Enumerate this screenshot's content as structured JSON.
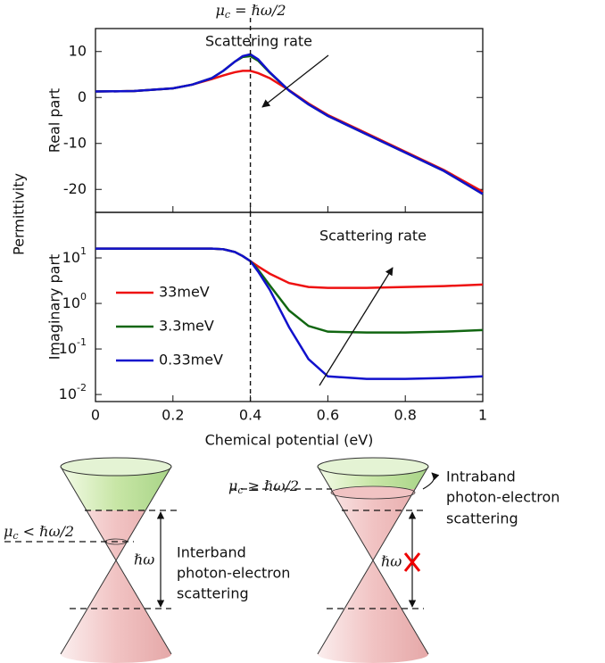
{
  "figure": {
    "y_label": "Permittivity",
    "mu_label": {
      "main": "μ",
      "sub": "c",
      "rest": " = ℏω/2"
    }
  },
  "chart_data": [
    {
      "type": "line",
      "y_label": "Real part",
      "annotation": "Scattering rate",
      "x": [
        0,
        0.1,
        0.2,
        0.25,
        0.3,
        0.33,
        0.36,
        0.38,
        0.4,
        0.42,
        0.45,
        0.5,
        0.55,
        0.6,
        0.7,
        0.8,
        0.9,
        1.0
      ],
      "xlim": [
        0,
        1
      ],
      "ylim": [
        -25,
        15
      ],
      "yticks": [
        -20,
        -10,
        0,
        10
      ],
      "vline": 0.4,
      "legend": "none",
      "series": [
        {
          "name": "33meV",
          "color": "#ee1111",
          "values": [
            1.3,
            1.4,
            2,
            2.8,
            4.0,
            4.8,
            5.5,
            5.8,
            5.8,
            5.3,
            4.2,
            1.6,
            -1.3,
            -3.8,
            -7.8,
            -11.8,
            -15.8,
            -20.5
          ]
        },
        {
          "name": "3.3meV",
          "color": "#116611",
          "values": [
            1.3,
            1.4,
            2,
            2.8,
            4.2,
            5.8,
            7.8,
            8.8,
            9.0,
            8.0,
            5.4,
            1.5,
            -1.5,
            -4,
            -8,
            -12,
            -16,
            -21
          ]
        },
        {
          "name": "0.33meV",
          "color": "#1111cc",
          "values": [
            1.3,
            1.4,
            2,
            2.8,
            4.2,
            5.8,
            7.8,
            9.0,
            9.4,
            8.3,
            5.5,
            1.5,
            -1.5,
            -4,
            -8,
            -12,
            -16,
            -21
          ]
        }
      ]
    },
    {
      "type": "line",
      "y_label": "Imaginary part",
      "annotation": "Scattering rate",
      "x_label": "Chemical potential (eV)",
      "x": [
        0,
        0.1,
        0.2,
        0.25,
        0.3,
        0.33,
        0.36,
        0.38,
        0.4,
        0.42,
        0.45,
        0.5,
        0.55,
        0.6,
        0.7,
        0.8,
        0.9,
        1.0
      ],
      "xlim": [
        0,
        1
      ],
      "xticks": [
        0,
        0.2,
        0.4,
        0.6,
        0.8,
        1
      ],
      "log_y": true,
      "ylim": [
        0.007,
        100
      ],
      "yticks": [
        {
          "value": 0.01,
          "label": "10",
          "power": "-2"
        },
        {
          "value": 0.1,
          "label": "10",
          "power": "-1"
        },
        {
          "value": 1,
          "label": "10",
          "power": "0"
        },
        {
          "value": 10,
          "label": "10",
          "power": "1"
        }
      ],
      "vline": 0.4,
      "legend": "left",
      "series": [
        {
          "name": "33meV",
          "color": "#ee1111",
          "values": [
            16,
            16,
            16,
            16,
            16,
            15.5,
            13.5,
            11,
            8.5,
            6.5,
            4.5,
            2.8,
            2.3,
            2.2,
            2.2,
            2.3,
            2.4,
            2.6
          ]
        },
        {
          "name": "3.3meV",
          "color": "#116611",
          "values": [
            16,
            16,
            16,
            16,
            16,
            15.5,
            13.5,
            11,
            8.5,
            5.5,
            2.5,
            0.7,
            0.32,
            0.24,
            0.23,
            0.23,
            0.24,
            0.26
          ]
        },
        {
          "name": "0.33meV",
          "color": "#1111cc",
          "values": [
            16,
            16,
            16,
            16,
            16,
            15.5,
            13.5,
            11,
            8.5,
            5,
            2,
            0.3,
            0.06,
            0.025,
            0.022,
            0.022,
            0.023,
            0.025
          ]
        }
      ]
    }
  ],
  "diagram": {
    "left": {
      "mu_label": {
        "main": "μ",
        "sub": "c",
        "rest": " < ℏω/2"
      },
      "gap": "ℏω",
      "text": [
        "Interband",
        "photon-electron",
        "scattering"
      ]
    },
    "right": {
      "mu_label": {
        "main": "μ",
        "sub": "c",
        "rest": " ≥ ℏω/2"
      },
      "gap": "ℏω",
      "text": [
        "Intraband",
        "photon-electron",
        "scattering"
      ]
    }
  }
}
